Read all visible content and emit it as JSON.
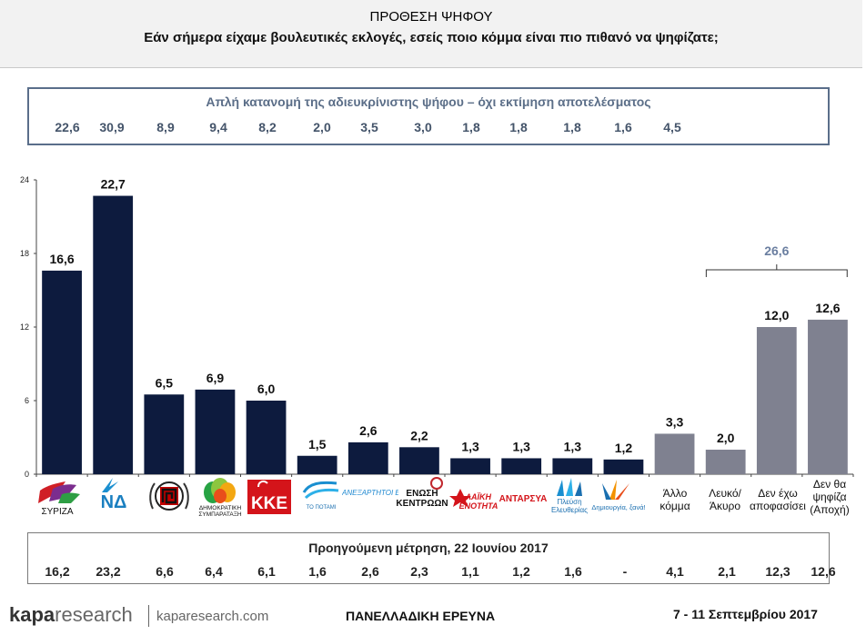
{
  "header": {
    "title": "ΠΡΟΘΕΣΗ ΨΗΦΟΥ",
    "subtitle": "Εάν σήμερα είχαμε βουλευτικές εκλογές, εσείς ποιο κόμμα είναι πιο πιθανό να ψηφίζατε;"
  },
  "allocation": {
    "title": "Απλή κατανομή της αδιευκρίνιστης ψήφου – όχι εκτίμηση αποτελέσματος",
    "values": [
      "22,6",
      "30,9",
      "8,9",
      "9,4",
      "8,2",
      "2,0",
      "3,5",
      "3,0",
      "1,8",
      "1,8",
      "1,8",
      "1,6",
      "4,5"
    ]
  },
  "chart_data": {
    "type": "bar",
    "categories": [
      "ΣΥΡΙΖΑ",
      "ΝΔ",
      "Χρυσή Αυγή",
      "Δημοκρατική Συμπαράταξη",
      "ΚΚΕ",
      "Το Ποτάμι",
      "Ανεξάρτητοι Έλληνες",
      "Ένωση Κεντρώων",
      "Λαϊκή Ενότητα",
      "ΑΝΤΑΡΣΥΑ",
      "Πλεύση Ελευθερίας",
      "Δημιουργία, ξανά!",
      "Άλλο κόμμα",
      "Λευκό/Άκυρο",
      "Δεν έχω αποφασίσει",
      "Δεν θα ψηφίζα (Αποχή)"
    ],
    "values": [
      16.6,
      22.7,
      6.5,
      6.9,
      6.0,
      1.5,
      2.6,
      2.2,
      1.3,
      1.3,
      1.3,
      1.2,
      3.3,
      2.0,
      12.0,
      12.6
    ],
    "value_labels": [
      "16,6",
      "22,7",
      "6,5",
      "6,9",
      "6,0",
      "1,5",
      "2,6",
      "2,2",
      "1,3",
      "1,3",
      "1,3",
      "1,2",
      "3,3",
      "2,0",
      "12,0",
      "12,6"
    ],
    "ylim": [
      0,
      24
    ],
    "yticks": [
      "0",
      "6",
      "12",
      "18",
      "24"
    ],
    "bracket_label": "26,6",
    "colors": {
      "party": "#0d1b3e",
      "other": "#7f8190",
      "bracket": "#6a7ea0"
    }
  },
  "logos": {
    "syriza": "ΣΥΡΙΖΑ",
    "nd": "ΝΔ",
    "dimsymp": "ΔΗΜΟΚΡΑΤΙΚΗ ΣΥΜΠΑΡΑΤΑΞΗ",
    "kke": "ΚΚΕ",
    "potami": "ΤΟ ΠΟΤΑΜΙ",
    "anel": "ΑΝΕΞΑΡΤΗΤΟΙ ΕΛΛΗΝΕΣ",
    "enosi": "ΕΝΩΣΗ ΚΕΝΤΡΩΩΝ",
    "laiki": "ΛΑΪΚΗ ΕΝΟΤΗΤΑ",
    "antarsya": "ΑΝΤΑΡΣΥΑ",
    "plefsi": "Πλεύση Ελευθερίας",
    "dimiourgia": "Δημιουργία, ξανά!",
    "allo": "Άλλο κόμμα",
    "lefko": "Λευκό/ Άκυρο",
    "den_exo": "Δεν έχω αποφασίσει",
    "den_tha": "Δεν θα ψηφίζα (Αποχή)"
  },
  "previous": {
    "title": "Προηγούμενη μέτρηση, 22 Ιουνίου 2017",
    "values": [
      "16,2",
      "23,2",
      "6,6",
      "6,4",
      "6,1",
      "1,6",
      "2,6",
      "2,3",
      "1,1",
      "1,2",
      "1,6",
      "-",
      "4,1",
      "2,1",
      "12,3",
      "12,6"
    ]
  },
  "footer": {
    "brand_bold": "kapa",
    "brand_light": "research",
    "site": "kaparesearch.com",
    "center": "ΠΑΝΕΛΛΑΔΙΚΗ ΕΡΕΥΝΑ",
    "date": "7 - 11 Σεπτεμβρίου 2017"
  }
}
